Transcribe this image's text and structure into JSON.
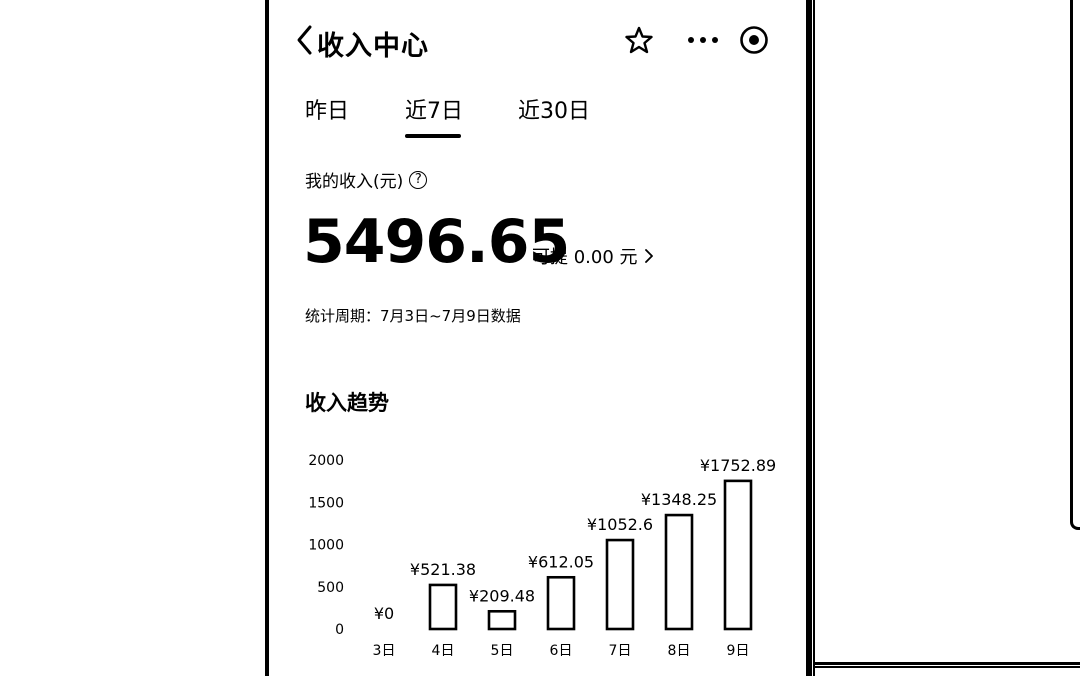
{
  "header": {
    "title": "收入中心",
    "icons": [
      "chevron-left-icon",
      "star-icon",
      "more-icon",
      "target-icon"
    ]
  },
  "tabs": [
    {
      "label": "昨日",
      "active": false
    },
    {
      "label": "近7日",
      "active": true
    },
    {
      "label": "近30日",
      "active": false
    }
  ],
  "income": {
    "label": "我的收入(元)",
    "help_icon": "?",
    "amount": "5496.65",
    "withdraw_text": "可提 0.00 元"
  },
  "period_text": "统计周期：7月3日~7月9日数据",
  "trend_title": "收入趋势",
  "chart_data": {
    "type": "bar",
    "categories": [
      "3日",
      "4日",
      "5日",
      "6日",
      "7日",
      "8日",
      "9日"
    ],
    "values": [
      0,
      521.38,
      209.48,
      612.05,
      1052.6,
      1348.25,
      1752.89
    ],
    "value_labels": [
      "¥0",
      "¥521.38",
      "¥209.48",
      "¥612.05",
      "¥1052.6",
      "¥1348.25",
      "¥1752.89"
    ],
    "yticks": [
      "2000",
      "1500",
      "1000",
      "500",
      "0"
    ],
    "ylim": [
      0,
      2000
    ],
    "grid": false,
    "bar_color": "#ffffff",
    "bar_stroke": "#000000"
  }
}
